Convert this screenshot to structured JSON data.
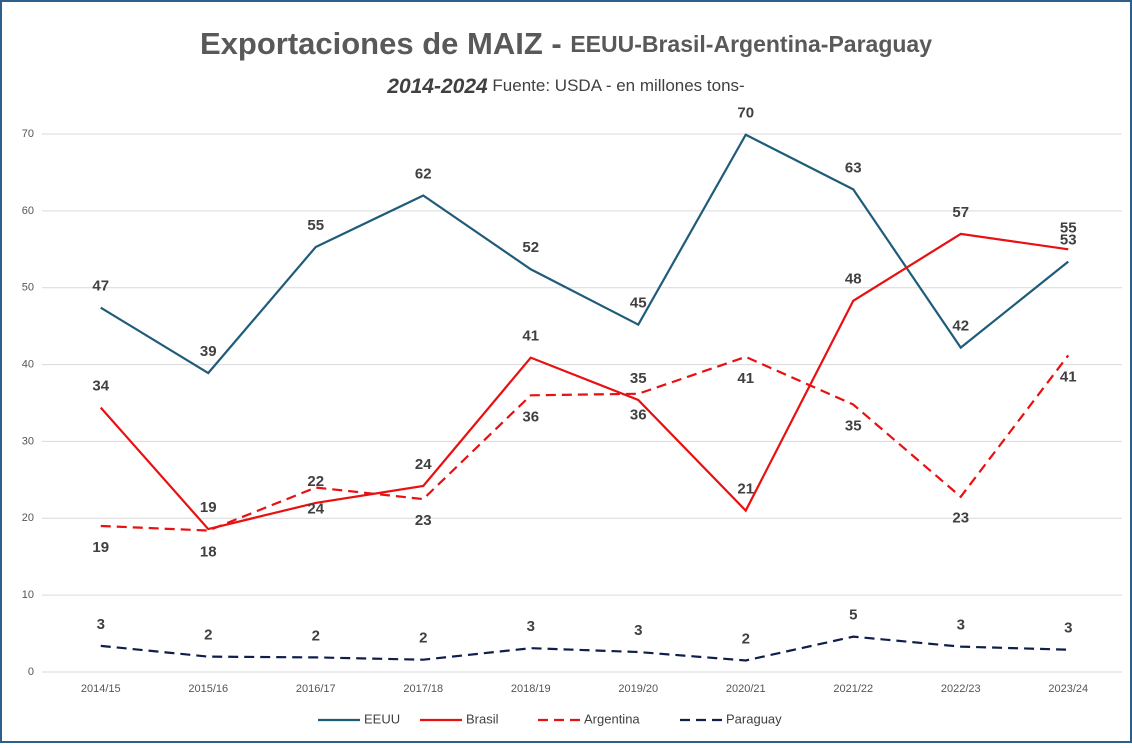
{
  "chart_data": {
    "type": "line",
    "title": "Exportaciones de MAIZ - ",
    "title_suffix": "EEUU-Brasil-Argentina-Paraguay",
    "subtitle_years": "2014-2024",
    "subtitle": " Fuente: USDA - en millones tons-",
    "categories": [
      "2014/15",
      "2015/16",
      "2016/17",
      "2017/18",
      "2018/19",
      "2019/20",
      "2020/21",
      "2021/22",
      "2022/23",
      "2023/24"
    ],
    "series": [
      {
        "name": "EEUU",
        "color": "#1f5c7a",
        "dashed": false,
        "values": [
          47.4,
          38.9,
          55.3,
          62.0,
          52.4,
          45.2,
          69.9,
          62.8,
          42.2,
          53.4
        ],
        "value_labels": [
          "47",
          "39",
          "55",
          "62",
          "52",
          "45",
          "70",
          "63",
          "42",
          "53"
        ]
      },
      {
        "name": "Brasil",
        "color": "#e81010",
        "dashed": false,
        "values": [
          34.4,
          18.6,
          22.0,
          24.2,
          40.9,
          35.4,
          21.0,
          48.3,
          57.0,
          55.0
        ],
        "value_labels": [
          "34",
          "19",
          "22",
          "24",
          "41",
          "35",
          "21",
          "48",
          "57",
          "55"
        ]
      },
      {
        "name": "Argentina",
        "color": "#e81010",
        "dashed": true,
        "values": [
          19.0,
          18.4,
          24.0,
          22.5,
          36.0,
          36.2,
          41.0,
          34.8,
          22.8,
          41.2
        ],
        "value_labels": [
          "19",
          "18",
          "24",
          "23",
          "36",
          "36",
          "41",
          "35",
          "23",
          "41"
        ]
      },
      {
        "name": "Paraguay",
        "color": "#0d1f4a",
        "dashed": true,
        "values": [
          3.4,
          2.0,
          1.9,
          1.6,
          3.1,
          2.6,
          1.5,
          4.6,
          3.3,
          2.9
        ],
        "value_labels": [
          "3",
          "2",
          "2",
          "2",
          "3",
          "3",
          "2",
          "5",
          "3",
          "3"
        ]
      }
    ],
    "ylim": [
      0,
      70
    ],
    "yticks": [
      0,
      10,
      20,
      30,
      40,
      50,
      60,
      70
    ],
    "grid": true,
    "legend": "bottom"
  }
}
